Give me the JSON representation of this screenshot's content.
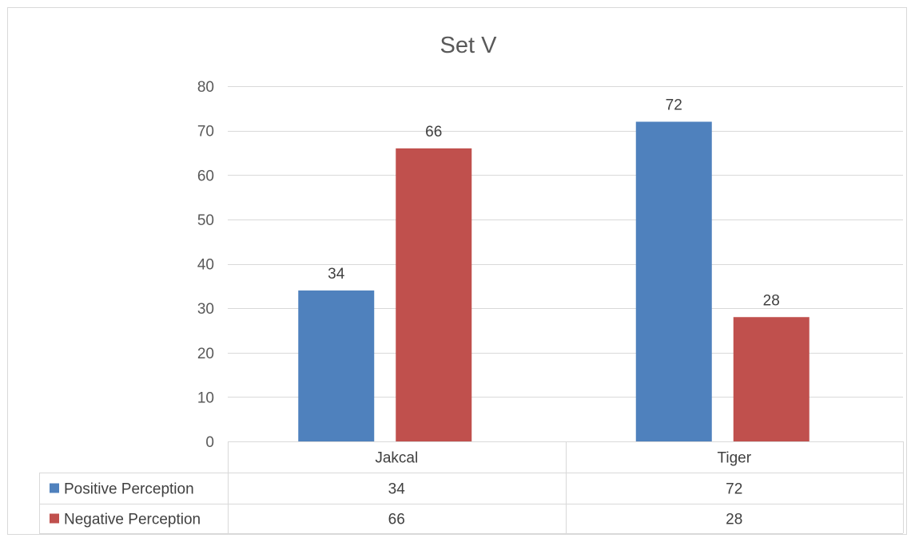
{
  "chart_data": {
    "type": "bar",
    "title": "Set V",
    "categories": [
      "Jakcal",
      "Tiger"
    ],
    "series": [
      {
        "name": "Positive Perception",
        "values": [
          34,
          72
        ],
        "color": "#4f81bd"
      },
      {
        "name": "Negative Perception",
        "values": [
          66,
          28
        ],
        "color": "#c0504d"
      }
    ],
    "xlabel": "",
    "ylabel": "",
    "ylim": [
      0,
      80
    ],
    "yticks": [
      0,
      10,
      20,
      30,
      40,
      50,
      60,
      70,
      80
    ],
    "grid": true,
    "legend": "data-table",
    "data_labels": true
  }
}
